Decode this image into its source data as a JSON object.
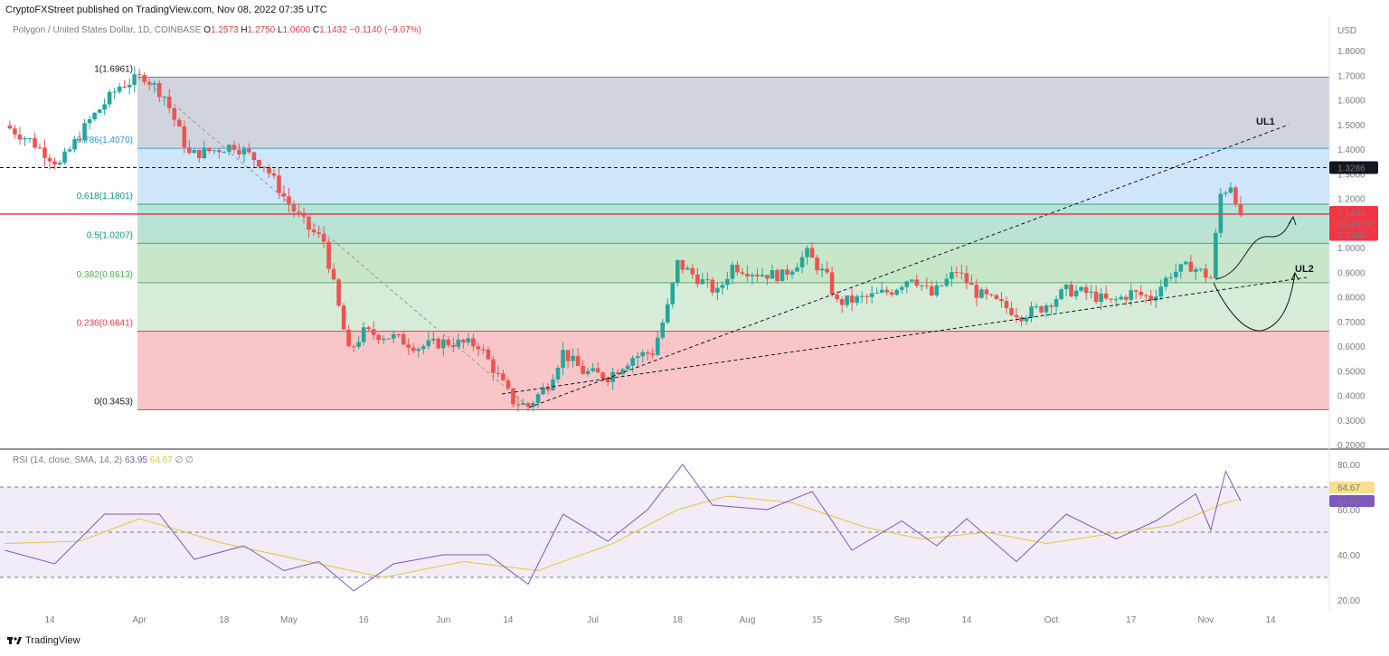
{
  "header": {
    "published": "CryptoFXStreet published on TradingView.com, Nov 08, 2022 07:35 UTC"
  },
  "symbol": {
    "name": "Polygon / United States Dollar, 1D, COINBASE",
    "o_label": "O",
    "o": "1.2573",
    "h_label": "H",
    "h": "1.2750",
    "l_label": "L",
    "l": "1.0600",
    "c_label": "C",
    "c": "1.1432",
    "change": "−0.1140 (−9.07%)"
  },
  "footer": {
    "brand": "TradingView"
  },
  "colors": {
    "up": "#26a69a",
    "down": "#ef5350",
    "rsi": "#7e57c2",
    "rsi_ma": "#e8c53a",
    "fib_1": "#d1d4dc",
    "fib_786": "#cfe5fa",
    "fib_618": "#b9e3d5",
    "fib_5": "#c8e6c9",
    "fib_382": "#d6ecd8",
    "fib_236": "#f8c6c9"
  },
  "chart_data": [
    {
      "type": "candlestick",
      "currency_label": "USD",
      "ylim": [
        0.2,
        1.9
      ],
      "y_ticks": [
        "1.8000",
        "1.7000",
        "1.6000",
        "1.5000",
        "1.4000",
        "1.3000",
        "1.2000",
        "1.1000",
        "1.0000",
        "0.9000",
        "0.8000",
        "0.7000",
        "0.6000",
        "0.5000",
        "0.4000",
        "0.3000",
        "0.2000"
      ],
      "x_ticks": [
        {
          "label": "14",
          "date": "2022-03-14"
        },
        {
          "label": "Apr",
          "date": "2022-04-01"
        },
        {
          "label": "18",
          "date": "2022-04-18"
        },
        {
          "label": "May",
          "date": "2022-05-01"
        },
        {
          "label": "16",
          "date": "2022-05-16"
        },
        {
          "label": "Jun",
          "date": "2022-06-01"
        },
        {
          "label": "14",
          "date": "2022-06-14"
        },
        {
          "label": "Jul",
          "date": "2022-07-01"
        },
        {
          "label": "18",
          "date": "2022-07-18"
        },
        {
          "label": "Aug",
          "date": "2022-08-01"
        },
        {
          "label": "15",
          "date": "2022-08-15"
        },
        {
          "label": "Sep",
          "date": "2022-09-01"
        },
        {
          "label": "14",
          "date": "2022-09-14"
        },
        {
          "label": "Oct",
          "date": "2022-10-01"
        },
        {
          "label": "17",
          "date": "2022-10-17"
        },
        {
          "label": "Nov",
          "date": "2022-11-01"
        },
        {
          "label": "14",
          "date": "2022-11-14"
        }
      ],
      "fib_levels": [
        {
          "label": "1(1.6961)",
          "value": 1.6961
        },
        {
          "label": "0.786(1.4070)",
          "value": 1.407
        },
        {
          "label": "0.618(1.1801)",
          "value": 1.1801
        },
        {
          "label": "0.5(1.0207)",
          "value": 1.0207
        },
        {
          "label": "0.382(0.8613)",
          "value": 0.8613
        },
        {
          "label": "0.236(0.6641)",
          "value": 0.6641
        },
        {
          "label": "0(0.3453)",
          "value": 0.3453
        }
      ],
      "price_markers": {
        "resistance": "1.3286",
        "last_price": "1.1432",
        "countdown": "16:24:37",
        "support": "1.1340"
      },
      "annotations": {
        "ul1": "UL1",
        "ul2": "UL2"
      },
      "series": [
        {
          "date": "2022-03-05",
          "start": 1.5
        },
        {
          "date": "2022-03-10",
          "value": 1.44
        },
        {
          "date": "2022-03-16",
          "value": 1.34
        },
        {
          "date": "2022-03-22",
          "value": 1.52
        },
        {
          "date": "2022-03-28",
          "value": 1.66
        },
        {
          "date": "2022-04-02",
          "value": 1.7
        },
        {
          "date": "2022-04-06",
          "value": 1.62
        },
        {
          "date": "2022-04-11",
          "value": 1.38
        },
        {
          "date": "2022-04-16",
          "value": 1.4
        },
        {
          "date": "2022-04-20",
          "value": 1.42
        },
        {
          "date": "2022-04-26",
          "value": 1.34
        },
        {
          "date": "2022-05-01",
          "value": 1.18
        },
        {
          "date": "2022-05-05",
          "value": 1.08
        },
        {
          "date": "2022-05-08",
          "value": 1.03
        },
        {
          "date": "2022-05-10",
          "value": 0.85
        },
        {
          "date": "2022-05-13",
          "value": 0.58
        },
        {
          "date": "2022-05-16",
          "value": 0.66
        },
        {
          "date": "2022-05-22",
          "value": 0.64
        },
        {
          "date": "2022-05-27",
          "value": 0.6
        },
        {
          "date": "2022-06-01",
          "value": 0.62
        },
        {
          "date": "2022-06-08",
          "value": 0.61
        },
        {
          "date": "2022-06-12",
          "value": 0.48
        },
        {
          "date": "2022-06-15",
          "value": 0.38
        },
        {
          "date": "2022-06-18",
          "value": 0.36
        },
        {
          "date": "2022-06-22",
          "value": 0.45
        },
        {
          "date": "2022-06-25",
          "value": 0.58
        },
        {
          "date": "2022-06-29",
          "value": 0.5
        },
        {
          "date": "2022-07-04",
          "value": 0.48
        },
        {
          "date": "2022-07-09",
          "value": 0.56
        },
        {
          "date": "2022-07-13",
          "value": 0.58
        },
        {
          "date": "2022-07-16",
          "value": 0.76
        },
        {
          "date": "2022-07-18",
          "value": 0.94
        },
        {
          "date": "2022-07-22",
          "value": 0.88
        },
        {
          "date": "2022-07-26",
          "value": 0.82
        },
        {
          "date": "2022-07-29",
          "value": 0.93
        },
        {
          "date": "2022-08-03",
          "value": 0.9
        },
        {
          "date": "2022-08-08",
          "value": 0.89
        },
        {
          "date": "2022-08-13",
          "value": 0.98
        },
        {
          "date": "2022-08-17",
          "value": 0.88
        },
        {
          "date": "2022-08-19",
          "value": 0.78
        },
        {
          "date": "2022-08-25",
          "value": 0.8
        },
        {
          "date": "2022-08-30",
          "value": 0.83
        },
        {
          "date": "2022-09-03",
          "value": 0.89
        },
        {
          "date": "2022-09-07",
          "value": 0.81
        },
        {
          "date": "2022-09-12",
          "value": 0.91
        },
        {
          "date": "2022-09-16",
          "value": 0.82
        },
        {
          "date": "2022-09-21",
          "value": 0.77
        },
        {
          "date": "2022-09-25",
          "value": 0.73
        },
        {
          "date": "2022-09-29",
          "value": 0.76
        },
        {
          "date": "2022-10-04",
          "value": 0.83
        },
        {
          "date": "2022-10-08",
          "value": 0.82
        },
        {
          "date": "2022-10-13",
          "value": 0.78
        },
        {
          "date": "2022-10-17",
          "value": 0.82
        },
        {
          "date": "2022-10-21",
          "value": 0.8
        },
        {
          "date": "2022-10-25",
          "value": 0.9
        },
        {
          "date": "2022-10-29",
          "value": 0.93
        },
        {
          "date": "2022-11-02",
          "value": 0.88
        },
        {
          "date": "2022-11-04",
          "value": 1.22
        },
        {
          "date": "2022-11-06",
          "value": 1.26
        },
        {
          "date": "2022-11-08",
          "value": 1.1432
        }
      ]
    },
    {
      "type": "line",
      "title": "RSI (14, close, SMA, 14, 2)",
      "rsi_value": "63.95",
      "rsi_ma_value": "64.67",
      "extra": "∅ ∅",
      "ylim": [
        15,
        85
      ],
      "y_ticks": [
        "80.00",
        "60.00",
        "40.00",
        "20.00"
      ],
      "bands": {
        "upper": 70,
        "middle": 50,
        "lower": 30
      },
      "series": [
        {
          "name": "RSI",
          "points": [
            {
              "date": "2022-03-05",
              "value": 42
            },
            {
              "date": "2022-03-15",
              "value": 36
            },
            {
              "date": "2022-03-25",
              "value": 58
            },
            {
              "date": "2022-04-05",
              "value": 58
            },
            {
              "date": "2022-04-12",
              "value": 38
            },
            {
              "date": "2022-04-22",
              "value": 44
            },
            {
              "date": "2022-04-30",
              "value": 33
            },
            {
              "date": "2022-05-07",
              "value": 37
            },
            {
              "date": "2022-05-14",
              "value": 24
            },
            {
              "date": "2022-05-22",
              "value": 36
            },
            {
              "date": "2022-06-01",
              "value": 40
            },
            {
              "date": "2022-06-10",
              "value": 40
            },
            {
              "date": "2022-06-18",
              "value": 27
            },
            {
              "date": "2022-06-25",
              "value": 58
            },
            {
              "date": "2022-07-04",
              "value": 46
            },
            {
              "date": "2022-07-12",
              "value": 60
            },
            {
              "date": "2022-07-19",
              "value": 80
            },
            {
              "date": "2022-07-25",
              "value": 62
            },
            {
              "date": "2022-08-05",
              "value": 60
            },
            {
              "date": "2022-08-14",
              "value": 68
            },
            {
              "date": "2022-08-22",
              "value": 42
            },
            {
              "date": "2022-09-01",
              "value": 55
            },
            {
              "date": "2022-09-08",
              "value": 44
            },
            {
              "date": "2022-09-14",
              "value": 56
            },
            {
              "date": "2022-09-24",
              "value": 37
            },
            {
              "date": "2022-10-04",
              "value": 58
            },
            {
              "date": "2022-10-14",
              "value": 47
            },
            {
              "date": "2022-10-22",
              "value": 55
            },
            {
              "date": "2022-10-30",
              "value": 67
            },
            {
              "date": "2022-11-02",
              "value": 51
            },
            {
              "date": "2022-11-05",
              "value": 77
            },
            {
              "date": "2022-11-08",
              "value": 63.95
            }
          ]
        },
        {
          "name": "RSI-based MA",
          "points": [
            {
              "date": "2022-03-05",
              "value": 45
            },
            {
              "date": "2022-03-20",
              "value": 46
            },
            {
              "date": "2022-04-01",
              "value": 56
            },
            {
              "date": "2022-04-18",
              "value": 45
            },
            {
              "date": "2022-05-05",
              "value": 37
            },
            {
              "date": "2022-05-20",
              "value": 30
            },
            {
              "date": "2022-06-05",
              "value": 37
            },
            {
              "date": "2022-06-20",
              "value": 33
            },
            {
              "date": "2022-07-05",
              "value": 45
            },
            {
              "date": "2022-07-18",
              "value": 60
            },
            {
              "date": "2022-07-28",
              "value": 66
            },
            {
              "date": "2022-08-10",
              "value": 63
            },
            {
              "date": "2022-08-25",
              "value": 52
            },
            {
              "date": "2022-09-05",
              "value": 47
            },
            {
              "date": "2022-09-18",
              "value": 50
            },
            {
              "date": "2022-09-30",
              "value": 45
            },
            {
              "date": "2022-10-12",
              "value": 49
            },
            {
              "date": "2022-10-25",
              "value": 53
            },
            {
              "date": "2022-11-05",
              "value": 63
            },
            {
              "date": "2022-11-08",
              "value": 64.67
            }
          ]
        }
      ]
    }
  ]
}
